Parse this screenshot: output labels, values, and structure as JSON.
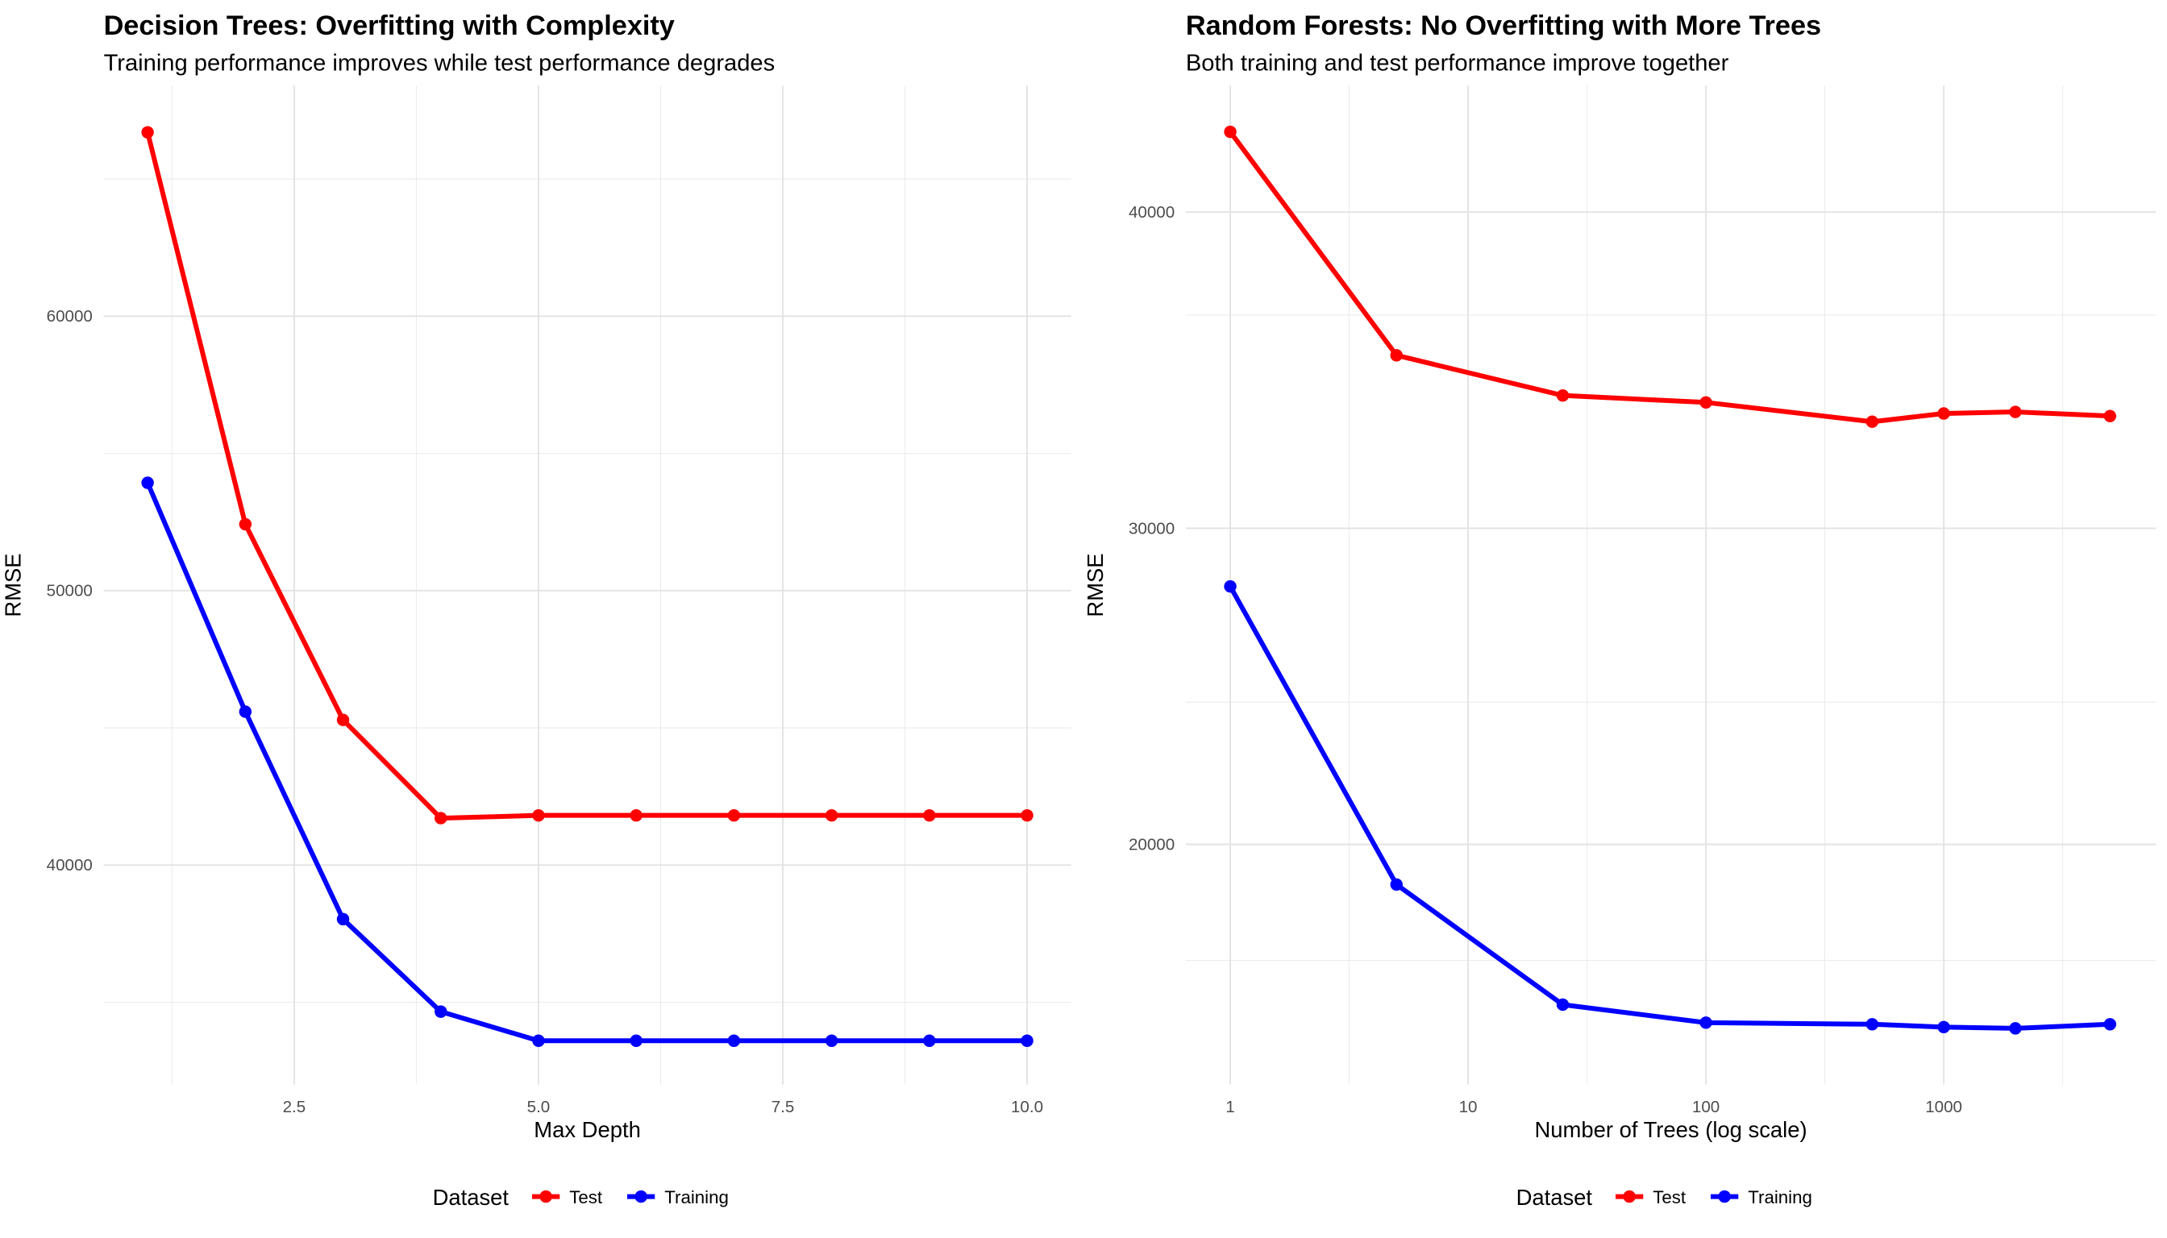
{
  "chart_data": [
    {
      "type": "line",
      "title": "Decision Trees: Overfitting with Complexity",
      "subtitle": "Training performance improves while test performance degrades",
      "xlabel": "Max Depth",
      "ylabel": "RMSE",
      "x": [
        1,
        2,
        3,
        4,
        5,
        6,
        7,
        8,
        9,
        10
      ],
      "series": [
        {
          "name": "Test",
          "color": "#ff0000",
          "values": [
            66700,
            52420,
            45290,
            41710,
            41810,
            41810,
            41810,
            41810,
            41810,
            41810
          ]
        },
        {
          "name": "Training",
          "color": "#0000ff",
          "values": [
            53930,
            45590,
            38030,
            34660,
            33600,
            33600,
            33600,
            33600,
            33600,
            33600
          ]
        }
      ],
      "xlim": [
        0.55,
        10.45
      ],
      "ylim": [
        32000,
        68400
      ],
      "xticks": [
        2.5,
        {
          "value": 5,
          "label": "5.0"
        },
        7.5,
        {
          "value": 10,
          "label": "10.0"
        }
      ],
      "yticks": [
        40000,
        50000,
        60000
      ],
      "xscale": "linear",
      "grid": true,
      "legend_title": "Dataset",
      "legend_position": "bottom"
    },
    {
      "type": "line",
      "title": "Random Forests: No Overfitting with More Trees",
      "subtitle": "Both training and test performance improve together",
      "xlabel": "Number of Trees (log scale)",
      "ylabel": "RMSE",
      "x": [
        1,
        5,
        25,
        100,
        500,
        1000,
        2000,
        5000
      ],
      "series": [
        {
          "name": "Test",
          "color": "#ff0000",
          "values": [
            42540,
            35470,
            34200,
            33980,
            33370,
            33630,
            33680,
            33550
          ]
        },
        {
          "name": "Training",
          "color": "#0000ff",
          "values": [
            28160,
            18730,
            14930,
            14360,
            14310,
            14220,
            14180,
            14310
          ]
        }
      ],
      "xlim": [
        0.65,
        7800
      ],
      "ylim": [
        12400,
        44000
      ],
      "xticks": [
        1,
        10,
        100,
        1000
      ],
      "yticks": [
        20000,
        30000,
        40000
      ],
      "xscale": "log",
      "grid": true,
      "legend_title": "Dataset",
      "legend_position": "bottom"
    }
  ]
}
